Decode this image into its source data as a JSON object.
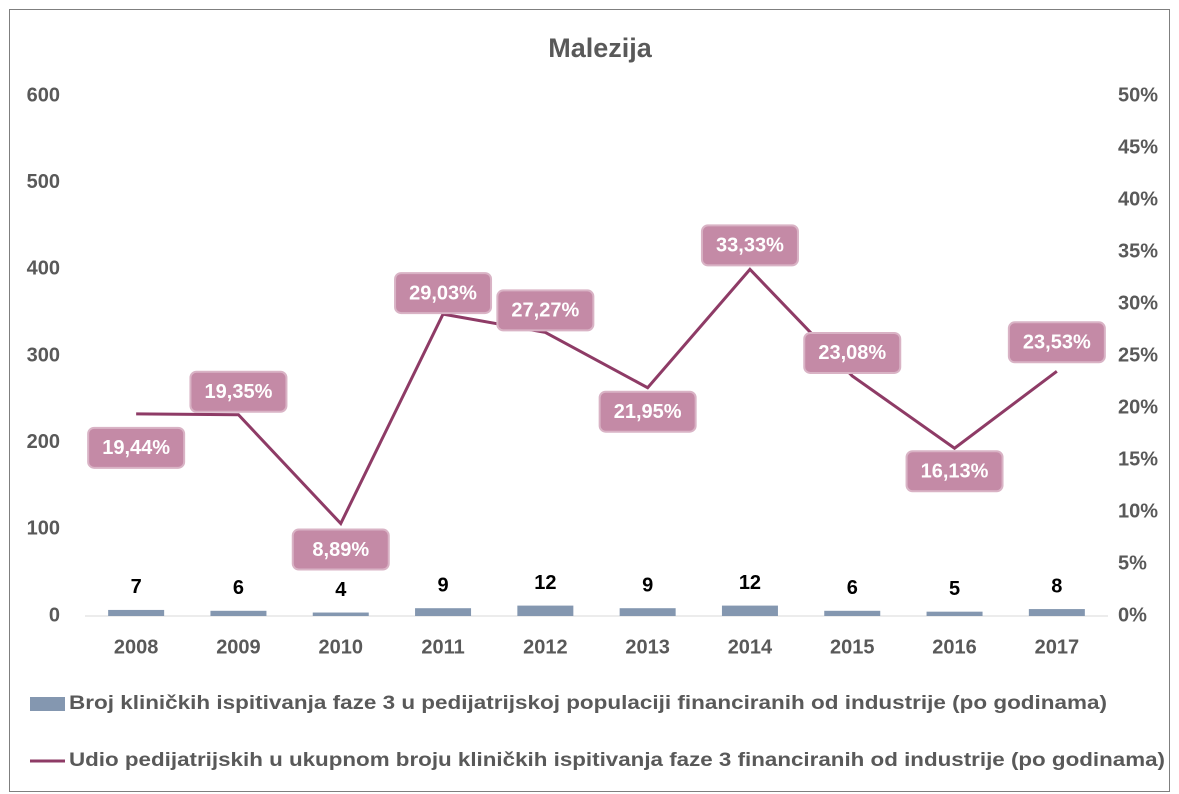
{
  "chart_data": {
    "type": "bar",
    "title": "Malezija",
    "categories": [
      "2008",
      "2009",
      "2010",
      "2011",
      "2012",
      "2013",
      "2014",
      "2015",
      "2016",
      "2017"
    ],
    "series": [
      {
        "name": "Broj kliničkih ispitivanja faze 3 u pedijatrijskoj populaciji financiranih od industrije (po godinama)",
        "type": "bar",
        "color": "#8497b0",
        "values": [
          7,
          6,
          4,
          9,
          12,
          9,
          12,
          6,
          5,
          8
        ]
      },
      {
        "name": "Udio pedijatrijskih u ukupnom broju kliničkih ispitivanja faze 3 financiranih od industrije (po godinama)",
        "type": "line",
        "axis": "y2",
        "color": "#8e3b66",
        "values": [
          19.44,
          19.35,
          8.89,
          29.03,
          27.27,
          21.95,
          33.33,
          23.08,
          16.13,
          23.53
        ],
        "value_labels": [
          "19,44%",
          "19,35%",
          "8,89%",
          "29,03%",
          "27,27%",
          "21,95%",
          "33,33%",
          "23,08%",
          "16,13%",
          "23,53%"
        ]
      }
    ],
    "ylim": [
      0,
      600
    ],
    "yticks": [
      0,
      100,
      200,
      300,
      400,
      500,
      600
    ],
    "y2lim": [
      0,
      50
    ],
    "y2ticks": [
      {
        "value": 0,
        "label": "0%"
      },
      {
        "value": 5,
        "label": "5%"
      },
      {
        "value": 10,
        "label": "10%"
      },
      {
        "value": 15,
        "label": "15%"
      },
      {
        "value": 20,
        "label": "20%"
      },
      {
        "value": 25,
        "label": "25%"
      },
      {
        "value": 30,
        "label": "30%"
      },
      {
        "value": 35,
        "label": "35%"
      },
      {
        "value": 40,
        "label": "40%"
      },
      {
        "value": 45,
        "label": "45%"
      },
      {
        "value": 50,
        "label": "50%"
      }
    ],
    "legend": "bottom"
  }
}
